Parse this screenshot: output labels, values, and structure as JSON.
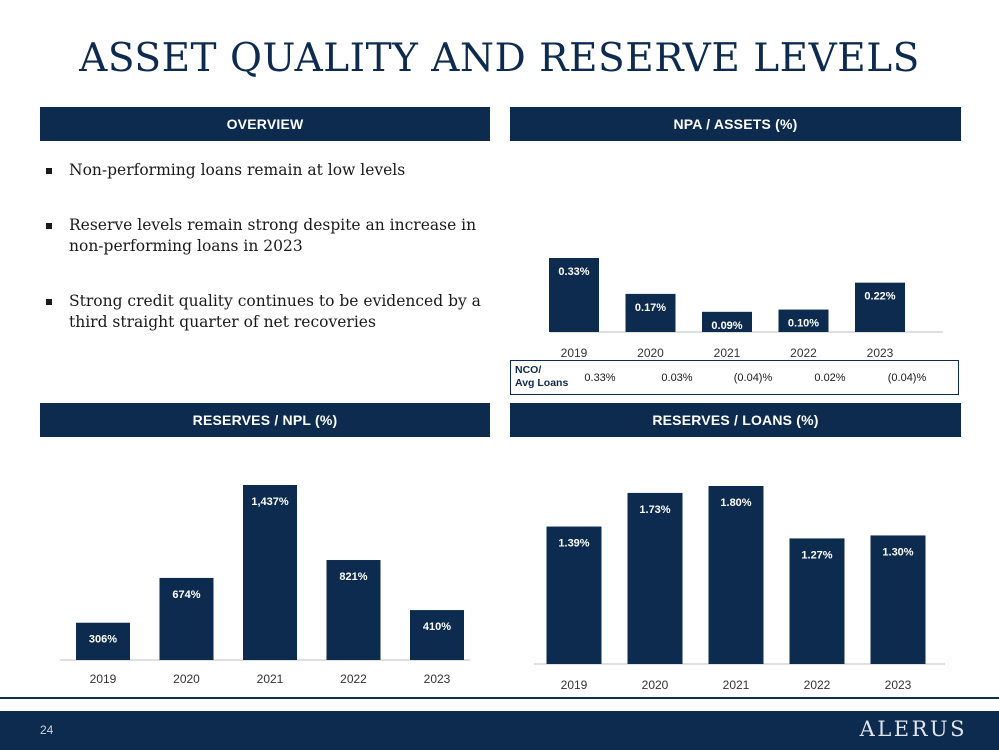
{
  "title": "ASSET QUALITY AND RESERVE LEVELS",
  "colors": {
    "navy": "#0d2b4e",
    "bar": "#0d2b4e",
    "axis": "#bfbfbf"
  },
  "panels": {
    "overview": "OVERVIEW",
    "npa": "NPA / ASSETS (%)",
    "reserves_npl": "RESERVES / NPL (%)",
    "reserves_loans": "RESERVES / LOANS (%)"
  },
  "bullets": [
    "Non-performing loans remain at low levels",
    "Reserve levels remain strong despite an increase in non-performing loans in 2023",
    "Strong credit quality continues to be evidenced by a third straight quarter of net recoveries"
  ],
  "nco": {
    "label_line1": "NCO/",
    "label_line2": "Avg Loans",
    "values": [
      "0.33%",
      "0.03%",
      "(0.04)%",
      "0.02%",
      "(0.04)%"
    ]
  },
  "chart_data": [
    {
      "id": "npa",
      "type": "bar",
      "title": "NPA / ASSETS (%)",
      "categories": [
        "2019",
        "2020",
        "2021",
        "2022",
        "2023"
      ],
      "values": [
        0.33,
        0.17,
        0.09,
        0.1,
        0.22
      ],
      "labels": [
        "0.33%",
        "0.17%",
        "0.09%",
        "0.10%",
        "0.22%"
      ],
      "ylim": [
        0,
        0.33
      ]
    },
    {
      "id": "npl",
      "type": "bar",
      "title": "RESERVES / NPL (%)",
      "categories": [
        "2019",
        "2020",
        "2021",
        "2022",
        "2023"
      ],
      "values": [
        306,
        674,
        1437,
        821,
        410
      ],
      "labels": [
        "306%",
        "674%",
        "1,437%",
        "821%",
        "410%"
      ],
      "ylim": [
        0,
        1437
      ]
    },
    {
      "id": "loans",
      "type": "bar",
      "title": "RESERVES / LOANS (%)",
      "categories": [
        "2019",
        "2020",
        "2021",
        "2022",
        "2023"
      ],
      "values": [
        1.39,
        1.73,
        1.8,
        1.27,
        1.3
      ],
      "labels": [
        "1.39%",
        "1.73%",
        "1.80%",
        "1.27%",
        "1.30%"
      ],
      "ylim": [
        0,
        1.8
      ]
    }
  ],
  "footer": {
    "page_number": "24",
    "logo": "ALERUS"
  }
}
